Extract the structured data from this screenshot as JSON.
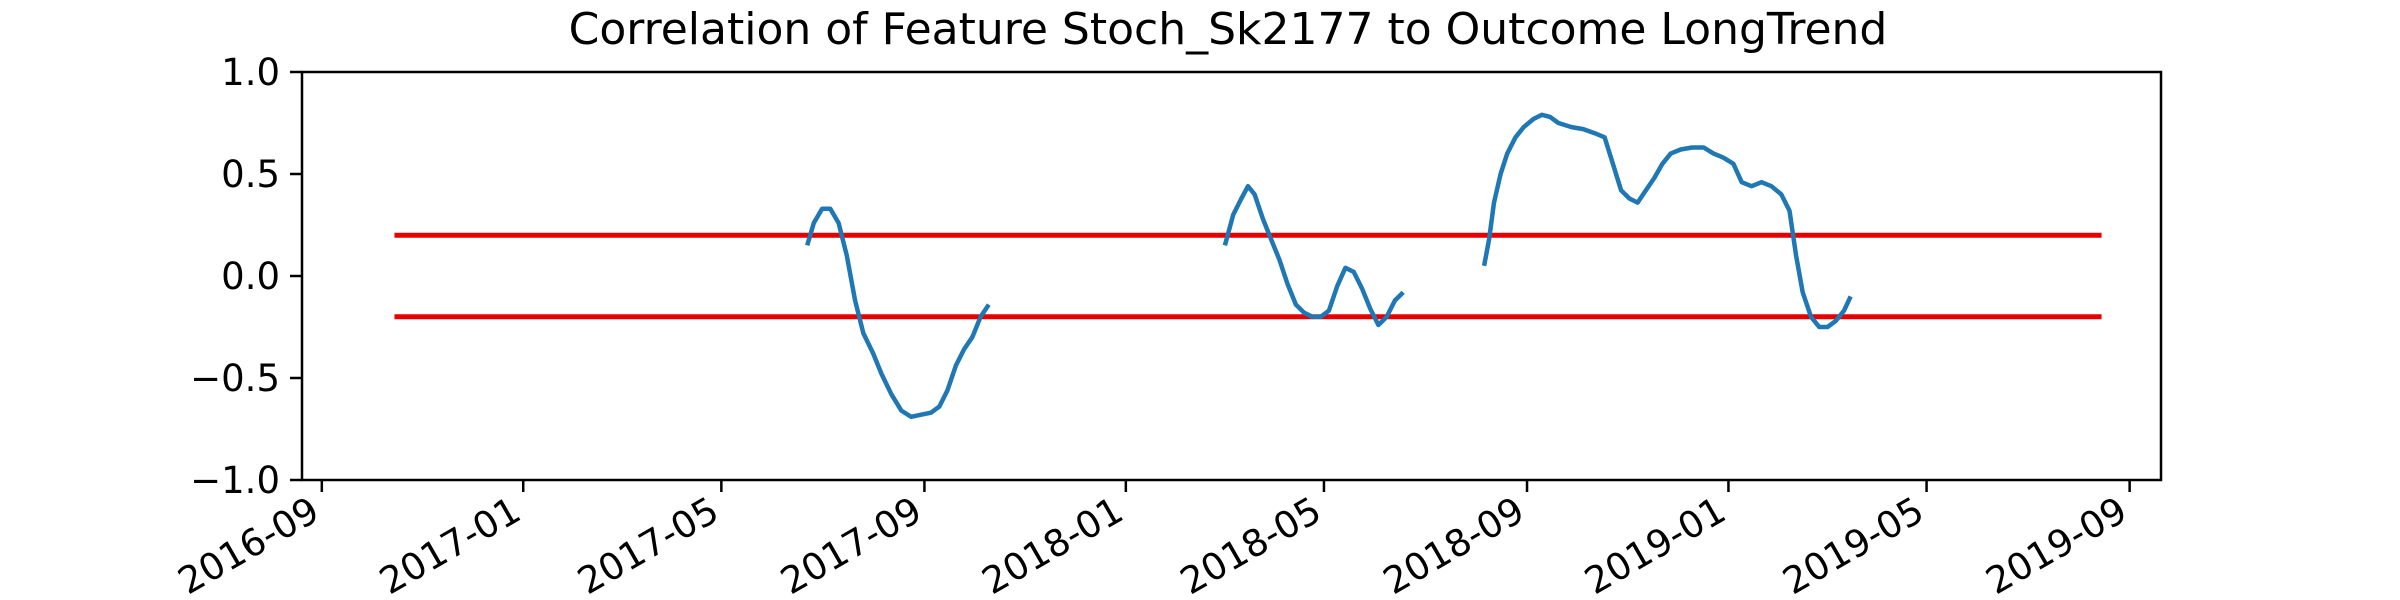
{
  "chart_data": {
    "type": "line",
    "title": "Correlation of Feature Stoch_Sk2177 to Outcome LongTrend",
    "xlabel": "",
    "ylabel": "",
    "ylim": [
      -1.0,
      1.0
    ],
    "xlim": [
      "2016-08-20",
      "2019-09-20"
    ],
    "grid": false,
    "yticks": [
      {
        "value": 1.0,
        "label": "1.0"
      },
      {
        "value": 0.5,
        "label": "0.5"
      },
      {
        "value": 0.0,
        "label": "0.0"
      },
      {
        "value": -0.5,
        "label": "−0.5"
      },
      {
        "value": -1.0,
        "label": "−1.0"
      }
    ],
    "xticks": [
      {
        "value": "2016-09-01",
        "label": "2016-09"
      },
      {
        "value": "2017-01-01",
        "label": "2017-01"
      },
      {
        "value": "2017-05-01",
        "label": "2017-05"
      },
      {
        "value": "2017-09-01",
        "label": "2017-09"
      },
      {
        "value": "2018-01-01",
        "label": "2018-01"
      },
      {
        "value": "2018-05-01",
        "label": "2018-05"
      },
      {
        "value": "2018-09-01",
        "label": "2018-09"
      },
      {
        "value": "2019-01-01",
        "label": "2019-01"
      },
      {
        "value": "2019-05-01",
        "label": "2019-05"
      },
      {
        "value": "2019-09-01",
        "label": "2019-09"
      }
    ],
    "threshold_lines": [
      {
        "y": 0.2,
        "x_start": "2016-10-15",
        "x_end": "2019-08-15",
        "color": "#e60000"
      },
      {
        "y": -0.2,
        "x_start": "2016-10-15",
        "x_end": "2019-08-15",
        "color": "#e60000"
      }
    ],
    "series": [
      {
        "color": "#1f77b4",
        "segments": [
          [
            [
              "2017-06-22",
              0.15
            ],
            [
              "2017-06-26",
              0.26
            ],
            [
              "2017-07-01",
              0.33
            ],
            [
              "2017-07-06",
              0.33
            ],
            [
              "2017-07-11",
              0.26
            ],
            [
              "2017-07-16",
              0.1
            ],
            [
              "2017-07-21",
              -0.12
            ],
            [
              "2017-07-26",
              -0.28
            ],
            [
              "2017-08-01",
              -0.38
            ],
            [
              "2017-08-06",
              -0.48
            ],
            [
              "2017-08-12",
              -0.58
            ],
            [
              "2017-08-18",
              -0.66
            ],
            [
              "2017-08-24",
              -0.69
            ],
            [
              "2017-08-30",
              -0.68
            ],
            [
              "2017-09-05",
              -0.67
            ],
            [
              "2017-09-10",
              -0.64
            ],
            [
              "2017-09-15",
              -0.56
            ],
            [
              "2017-09-20",
              -0.44
            ],
            [
              "2017-09-25",
              -0.36
            ],
            [
              "2017-09-30",
              -0.3
            ],
            [
              "2017-10-05",
              -0.2
            ],
            [
              "2017-10-10",
              -0.14
            ]
          ],
          [
            [
              "2018-03-02",
              0.15
            ],
            [
              "2018-03-07",
              0.3
            ],
            [
              "2018-03-12",
              0.38
            ],
            [
              "2018-03-16",
              0.44
            ],
            [
              "2018-03-20",
              0.4
            ],
            [
              "2018-03-25",
              0.28
            ],
            [
              "2018-03-30",
              0.18
            ],
            [
              "2018-04-04",
              0.08
            ],
            [
              "2018-04-09",
              -0.04
            ],
            [
              "2018-04-14",
              -0.14
            ],
            [
              "2018-04-19",
              -0.18
            ],
            [
              "2018-04-24",
              -0.2
            ],
            [
              "2018-04-29",
              -0.2
            ],
            [
              "2018-05-04",
              -0.17
            ],
            [
              "2018-05-09",
              -0.05
            ],
            [
              "2018-05-14",
              0.04
            ],
            [
              "2018-05-19",
              0.02
            ],
            [
              "2018-05-24",
              -0.06
            ],
            [
              "2018-05-29",
              -0.16
            ],
            [
              "2018-06-03",
              -0.24
            ],
            [
              "2018-06-08",
              -0.2
            ],
            [
              "2018-06-13",
              -0.12
            ],
            [
              "2018-06-18",
              -0.08
            ]
          ],
          [
            [
              "2018-08-06",
              0.05
            ],
            [
              "2018-08-09",
              0.18
            ],
            [
              "2018-08-12",
              0.36
            ],
            [
              "2018-08-16",
              0.5
            ],
            [
              "2018-08-20",
              0.6
            ],
            [
              "2018-08-25",
              0.68
            ],
            [
              "2018-08-30",
              0.73
            ],
            [
              "2018-09-05",
              0.77
            ],
            [
              "2018-09-10",
              0.79
            ],
            [
              "2018-09-15",
              0.78
            ],
            [
              "2018-09-20",
              0.75
            ],
            [
              "2018-09-28",
              0.73
            ],
            [
              "2018-10-05",
              0.72
            ],
            [
              "2018-10-12",
              0.7
            ],
            [
              "2018-10-18",
              0.68
            ],
            [
              "2018-10-23",
              0.55
            ],
            [
              "2018-10-28",
              0.42
            ],
            [
              "2018-11-02",
              0.38
            ],
            [
              "2018-11-07",
              0.36
            ],
            [
              "2018-11-12",
              0.42
            ],
            [
              "2018-11-17",
              0.48
            ],
            [
              "2018-11-22",
              0.55
            ],
            [
              "2018-11-27",
              0.6
            ],
            [
              "2018-12-03",
              0.62
            ],
            [
              "2018-12-10",
              0.63
            ],
            [
              "2018-12-17",
              0.63
            ],
            [
              "2018-12-23",
              0.6
            ],
            [
              "2018-12-29",
              0.58
            ],
            [
              "2019-01-04",
              0.55
            ],
            [
              "2019-01-09",
              0.46
            ],
            [
              "2019-01-15",
              0.44
            ],
            [
              "2019-01-21",
              0.46
            ],
            [
              "2019-01-27",
              0.44
            ],
            [
              "2019-02-02",
              0.4
            ],
            [
              "2019-02-07",
              0.32
            ],
            [
              "2019-02-11",
              0.1
            ],
            [
              "2019-02-15",
              -0.08
            ],
            [
              "2019-02-20",
              -0.2
            ],
            [
              "2019-02-25",
              -0.25
            ],
            [
              "2019-03-02",
              -0.25
            ],
            [
              "2019-03-07",
              -0.22
            ],
            [
              "2019-03-12",
              -0.17
            ],
            [
              "2019-03-16",
              -0.1
            ]
          ]
        ]
      }
    ]
  }
}
